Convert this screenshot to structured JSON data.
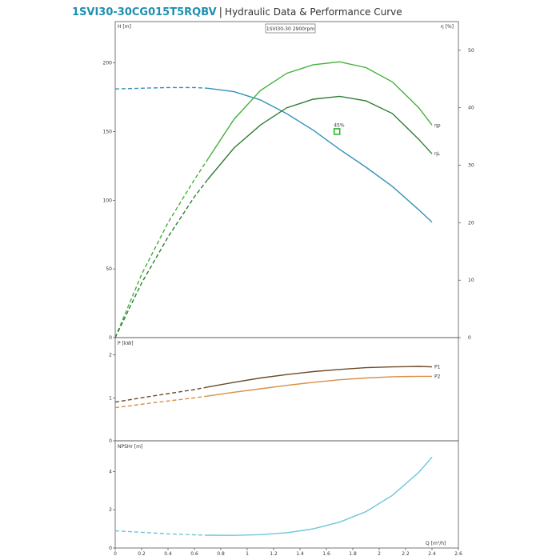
{
  "header": {
    "model": "1SVI30-30CG015T5RQBV",
    "separator": "|",
    "subtitle": "Hydraulic Data & Performance Curve"
  },
  "colors": {
    "head": "#3590b8",
    "eta_p": "#44b03c",
    "eta_l": "#2f7d34",
    "p1": "#6b4a2a",
    "p2": "#d88f45",
    "npsh": "#6cc6da",
    "marker": "#2fb430"
  },
  "chart_data": [
    {
      "type": "line",
      "id": "head-efficiency",
      "legend_box": "1SVI30-30 2900rpm",
      "ylabel": "H [m]",
      "y2label": "η [%]",
      "xlim": [
        0,
        2.6
      ],
      "ylim": [
        0,
        230
      ],
      "y2lim": [
        0,
        55
      ],
      "yticks": [
        0,
        50,
        100,
        150,
        200
      ],
      "y2ticks": [
        0,
        10,
        20,
        30,
        40,
        50
      ],
      "annotation": {
        "text": "45%",
        "x": 1.68,
        "y": 150
      },
      "series": [
        {
          "key": "head",
          "axis": "left",
          "name": "",
          "dashed_x": [
            0,
            0.2,
            0.4,
            0.6,
            0.7
          ],
          "dashed_y": [
            181,
            181.5,
            182,
            182,
            181.5
          ],
          "solid_x": [
            0.7,
            0.9,
            1.1,
            1.3,
            1.5,
            1.7,
            1.9,
            2.1,
            2.3,
            2.4
          ],
          "solid_y": [
            181.5,
            179,
            173,
            163,
            151,
            137,
            124,
            110,
            93,
            84
          ]
        },
        {
          "key": "eta_p",
          "axis": "right",
          "name": "ηp",
          "dashed_x": [
            0,
            0.2,
            0.4,
            0.6,
            0.7
          ],
          "dashed_y": [
            0,
            11,
            20,
            27.5,
            31
          ],
          "solid_x": [
            0.7,
            0.9,
            1.1,
            1.3,
            1.5,
            1.7,
            1.9,
            2.1,
            2.3,
            2.4
          ],
          "solid_y": [
            31,
            38,
            43,
            46,
            47.5,
            48,
            47,
            44.5,
            40,
            37
          ]
        },
        {
          "key": "eta_l",
          "axis": "right",
          "name": "ηL",
          "dashed_x": [
            0,
            0.2,
            0.4,
            0.6,
            0.7
          ],
          "dashed_y": [
            0,
            9.5,
            17.5,
            24.5,
            27.5
          ],
          "solid_x": [
            0.7,
            0.9,
            1.1,
            1.3,
            1.5,
            1.7,
            1.9,
            2.1,
            2.3,
            2.4
          ],
          "solid_y": [
            27.5,
            33,
            37,
            40,
            41.5,
            42,
            41.2,
            39,
            34.5,
            32
          ]
        }
      ]
    },
    {
      "type": "line",
      "id": "power",
      "ylabel": "P [kW]",
      "xlim": [
        0,
        2.6
      ],
      "ylim": [
        0,
        2.4
      ],
      "yticks": [
        0,
        1,
        2
      ],
      "series": [
        {
          "key": "p1",
          "name": "P1",
          "dashed_x": [
            0,
            0.3,
            0.6,
            0.7
          ],
          "dashed_y": [
            0.9,
            1.05,
            1.19,
            1.25
          ],
          "solid_x": [
            0.7,
            0.9,
            1.1,
            1.3,
            1.5,
            1.7,
            1.9,
            2.1,
            2.3,
            2.4
          ],
          "solid_y": [
            1.25,
            1.36,
            1.46,
            1.54,
            1.61,
            1.66,
            1.7,
            1.72,
            1.73,
            1.72
          ]
        },
        {
          "key": "p2",
          "name": "P2",
          "dashed_x": [
            0,
            0.3,
            0.6,
            0.7
          ],
          "dashed_y": [
            0.77,
            0.89,
            1.0,
            1.04
          ],
          "solid_x": [
            0.7,
            0.9,
            1.1,
            1.3,
            1.5,
            1.7,
            1.9,
            2.1,
            2.3,
            2.4
          ],
          "solid_y": [
            1.04,
            1.13,
            1.21,
            1.29,
            1.36,
            1.42,
            1.46,
            1.49,
            1.5,
            1.5
          ]
        }
      ]
    },
    {
      "type": "line",
      "id": "npshr",
      "ylabel": "NPSHr [m]",
      "xlabel": "Q [m³/h]",
      "xlim": [
        0,
        2.6
      ],
      "ylim": [
        0,
        5.6
      ],
      "yticks": [
        0,
        2,
        4
      ],
      "xticks": [
        0,
        0.2,
        0.4,
        0.6,
        0.8,
        1,
        1.2,
        1.4,
        1.6,
        1.8,
        2,
        2.2,
        2.4,
        2.6
      ],
      "series": [
        {
          "key": "npsh",
          "name": "",
          "dashed_x": [
            0,
            0.2,
            0.4,
            0.6,
            0.7
          ],
          "dashed_y": [
            0.9,
            0.82,
            0.74,
            0.69,
            0.67
          ],
          "solid_x": [
            0.7,
            0.9,
            1.1,
            1.3,
            1.5,
            1.7,
            1.9,
            2.1,
            2.3,
            2.4
          ],
          "solid_y": [
            0.67,
            0.66,
            0.7,
            0.8,
            1.0,
            1.35,
            1.9,
            2.75,
            3.95,
            4.75
          ]
        }
      ]
    }
  ]
}
